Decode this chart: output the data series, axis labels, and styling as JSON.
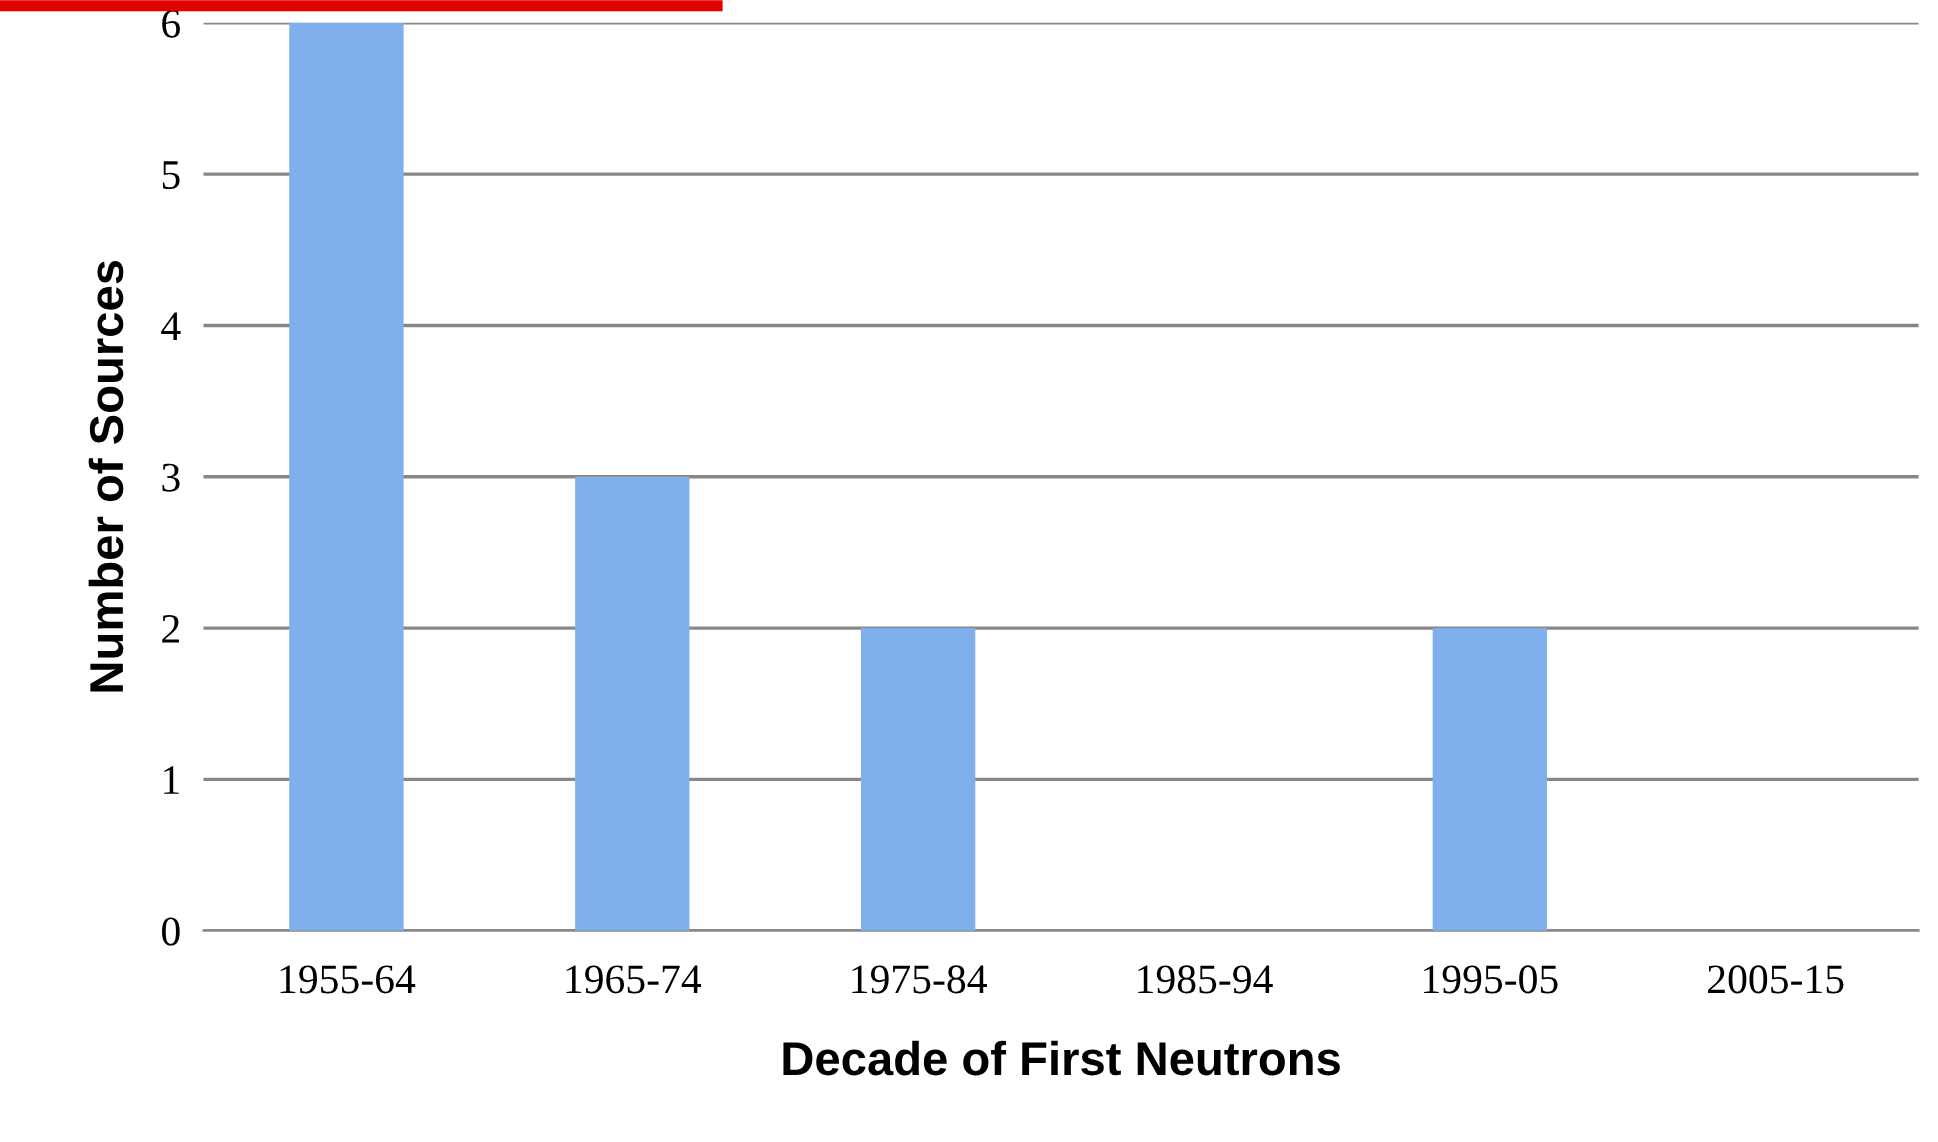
{
  "chart_data": {
    "type": "bar",
    "xlabel": "Decade of First Neutrons",
    "ylabel": "Number of Sources",
    "categories": [
      "1955-64",
      "1965-74",
      "1975-84",
      "1985-94",
      "1995-05",
      "2005-15"
    ],
    "values": [
      6,
      3,
      2,
      0,
      2,
      0
    ],
    "color": "#7fb0ec",
    "ylim": [
      0,
      6
    ],
    "yticks": [
      0,
      1,
      2,
      3,
      4,
      5,
      6
    ],
    "grid": "y",
    "legend": false
  }
}
